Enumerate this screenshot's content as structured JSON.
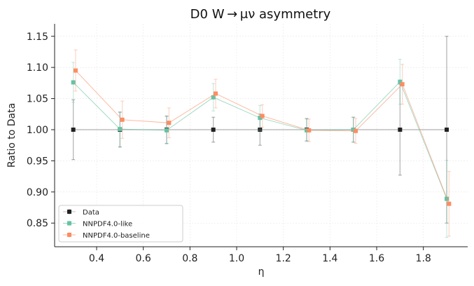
{
  "chart_data": {
    "type": "scatter",
    "title": "D0 W → μν asymmetry",
    "xlabel": "η",
    "ylabel": "Ratio to Data",
    "xlim": [
      0.22,
      1.99
    ],
    "ylim": [
      0.812,
      1.17
    ],
    "xticks": [
      0.4,
      0.6,
      0.8,
      1.0,
      1.2,
      1.4,
      1.6,
      1.8
    ],
    "yticks": [
      0.85,
      0.9,
      0.95,
      1.0,
      1.05,
      1.1,
      1.15
    ],
    "xtick_labels": [
      "0.4",
      "0.6",
      "0.8",
      "1.0",
      "1.2",
      "1.4",
      "1.6",
      "1.8"
    ],
    "ytick_labels": [
      "0.85",
      "0.90",
      "0.95",
      "1.00",
      "1.05",
      "1.10",
      "1.15"
    ],
    "grid": true,
    "legend_position": "lower-left",
    "series": [
      {
        "name": "Data",
        "color": "#222222",
        "x": [
          0.3,
          0.5,
          0.7,
          0.9,
          1.1,
          1.3,
          1.5,
          1.7,
          1.9
        ],
        "y": [
          1.0,
          1.0,
          1.0,
          1.0,
          1.0,
          1.0,
          1.0,
          1.0,
          1.0
        ],
        "err": [
          0.048,
          0.028,
          0.022,
          0.02,
          0.025,
          0.018,
          0.02,
          0.073,
          0.15
        ],
        "connect_line": true,
        "line_opacity": 0.28
      },
      {
        "name": "NNPDF4.0-like",
        "color": "#66c2a5",
        "x": [
          0.3,
          0.5,
          0.7,
          0.9,
          1.1,
          1.3,
          1.5,
          1.7,
          1.9
        ],
        "y": [
          1.076,
          1.001,
          0.999,
          1.052,
          1.019,
          0.999,
          1.0,
          1.077,
          0.889
        ],
        "err": [
          0.032,
          0.028,
          0.022,
          0.022,
          0.02,
          0.018,
          0.02,
          0.036,
          0.062
        ],
        "connect_line": true,
        "line_opacity": 0.65
      },
      {
        "name": "NNPDF4.0-baseline",
        "color": "#fc8d62",
        "x": [
          0.31,
          0.51,
          0.71,
          0.91,
          1.11,
          1.31,
          1.51,
          1.71,
          1.91
        ],
        "y": [
          1.095,
          1.016,
          1.011,
          1.058,
          1.022,
          0.999,
          0.998,
          1.073,
          0.881
        ],
        "err": [
          0.033,
          0.03,
          0.024,
          0.023,
          0.018,
          0.018,
          0.02,
          0.032,
          0.052
        ],
        "connect_line": true,
        "line_opacity": 0.65
      }
    ]
  }
}
